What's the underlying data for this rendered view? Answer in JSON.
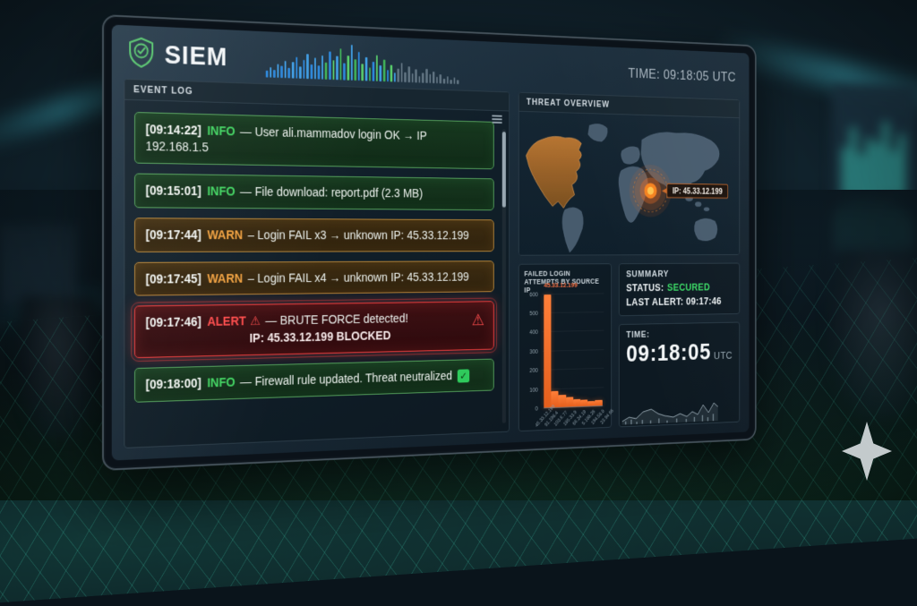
{
  "header": {
    "brand": "SIEM",
    "clock": "TIME: 09:18:05 UTC"
  },
  "event_log": {
    "title": "EVENT LOG",
    "entries": [
      {
        "time": "[09:14:22]",
        "level": "INFO",
        "severity": "info",
        "message": "— User ali.mammadov login OK → IP 192.168.1.5"
      },
      {
        "time": "[09:15:01]",
        "level": "INFO",
        "severity": "info",
        "message": "— File download: report.pdf (2.3 MB)"
      },
      {
        "time": "[09:17:44]",
        "level": "WARN",
        "severity": "warn",
        "message": "– Login FAIL x3 → unknown IP: 45.33.12.199"
      },
      {
        "time": "[09:17:45]",
        "level": "WARN",
        "severity": "warn",
        "message": "– Login FAIL x4 → unknown IP: 45.33.12.199"
      },
      {
        "time": "[09:17:46]",
        "level": "ALERT",
        "severity": "alert",
        "message": "— BRUTE FORCE detected!",
        "message_line2": "IP: 45.33.12.199 BLOCKED",
        "has_warning_icon": true
      },
      {
        "time": "[09:18:00]",
        "level": "INFO",
        "severity": "info",
        "message": "— Firewall rule updated. Threat neutralized",
        "has_check_icon": true
      }
    ]
  },
  "threat_overview": {
    "title": "THREAT OVERVIEW",
    "marker_label": "IP: 45.33.12.199"
  },
  "chart_data": {
    "type": "bar",
    "title": "FAILED LOGIN ATTEMPTS BY SOURCE IP",
    "annotation": "45.33.12.199",
    "categories": [
      "45.33.12.199",
      "91.198.4",
      "103.6.77",
      "185.33.9",
      "66.24.19",
      "5.188.26",
      "194.58.8",
      "23.94.66"
    ],
    "values": [
      600,
      85,
      65,
      50,
      40,
      35,
      28,
      30
    ],
    "yticks": [
      600,
      500,
      400,
      300,
      200,
      100,
      0
    ],
    "ylim": [
      0,
      620
    ],
    "bar_color": "#f0712e",
    "legend": "none",
    "grid": "horizontal"
  },
  "summary": {
    "title": "SUMMARY",
    "status_label": "STATUS:",
    "status_value": "SECURED",
    "last_alert": "LAST ALERT: 09:17:46"
  },
  "clock_panel": {
    "label": "TIME:",
    "time": "09:18:05",
    "zone": "UTC"
  },
  "icons": {
    "brand": "shield-check-icon",
    "event_menu": "hamburger-menu-icon",
    "alert": "warning-triangle-icon",
    "resolved": "check-badge-icon",
    "watermark": "sparkle-icon"
  },
  "colors": {
    "info_green": "#43d663",
    "warn_orange": "#f0a140",
    "alert_red": "#ff4d4d",
    "secured_green": "#3bdb66",
    "bar_orange": "#f0712e"
  }
}
